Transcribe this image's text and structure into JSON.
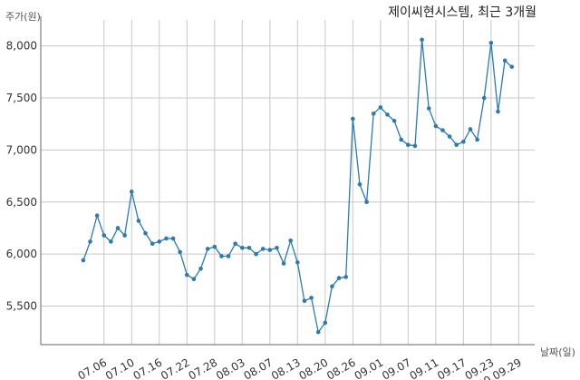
{
  "chart_data": {
    "type": "line",
    "title": "제이씨현시스템, 최근 3개월",
    "ylabel": "주가(원)",
    "xlabel": "날짜(일)",
    "ylim": [
      5130,
      8250
    ],
    "yticks": [
      5500,
      6000,
      6500,
      7000,
      7500,
      8000
    ],
    "ytick_labels": [
      "5,500",
      "6,000",
      "6,500",
      "7,000",
      "7,500",
      "8,000"
    ],
    "grid": true,
    "x_tick_labels": [
      "07.06",
      "07.10",
      "07.16",
      "07.22",
      "07.28",
      "08.03",
      "08.07",
      "08.13",
      "08.20",
      "08.26",
      "09.01",
      "09.07",
      "09.11",
      "09.17",
      "09.23",
      "20.09.29"
    ],
    "x_tick_positions": [
      6,
      10,
      14,
      18,
      22,
      26,
      30,
      34,
      38,
      42,
      46,
      50,
      54,
      58,
      62,
      66
    ],
    "color": "#2b7bb0",
    "series": [
      {
        "values": [
          5940,
          6120,
          6370,
          6180,
          6120,
          6250,
          6180,
          6600,
          6320,
          6200,
          6100,
          6120,
          6150,
          6150,
          6020,
          5800,
          5760,
          5860,
          6050,
          6070,
          5980,
          5980,
          6100,
          6060,
          6060,
          6000,
          6050,
          6040,
          6060,
          5910,
          6130,
          5920,
          5550,
          5580,
          5250,
          5340,
          5690,
          5770,
          5780,
          7300,
          6670,
          6500,
          7350,
          7410,
          7340,
          7280,
          7100,
          7050,
          7040,
          8060,
          7400,
          7230,
          7190,
          7130,
          7050,
          7080,
          7200,
          7100,
          7500,
          8030,
          7370,
          7860,
          7800
        ]
      }
    ]
  }
}
